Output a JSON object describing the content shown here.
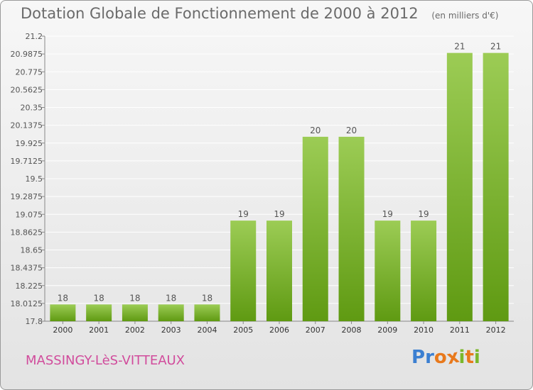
{
  "chart_data": {
    "type": "bar",
    "title": "Dotation Globale de Fonctionnement de 2000 à 2012",
    "unit_label": "(en milliers d'€)",
    "categories": [
      "2000",
      "2001",
      "2002",
      "2003",
      "2004",
      "2005",
      "2006",
      "2007",
      "2008",
      "2009",
      "2010",
      "2011",
      "2012"
    ],
    "values": [
      18,
      18,
      18,
      18,
      18,
      19,
      19,
      20,
      20,
      19,
      19,
      21,
      21
    ],
    "data_labels": [
      "18",
      "18",
      "18",
      "18",
      "18",
      "19",
      "19",
      "20",
      "20",
      "19",
      "19",
      "21",
      "21"
    ],
    "ylim": [
      17.8,
      21.2
    ],
    "yticks": [
      "17.8",
      "18.0125",
      "18.225",
      "18.4375",
      "18.65",
      "18.8625",
      "19.075",
      "19.2875",
      "19.5",
      "19.7125",
      "19.925",
      "20.1375",
      "20.35",
      "20.5625",
      "20.775",
      "20.9875",
      "21.2"
    ],
    "grid": true,
    "colors": {
      "bar_top": "#9ccc55",
      "bar_bottom": "#5f9a12",
      "grid": "#ffffff",
      "axis": "#888888"
    }
  },
  "footer": {
    "commune": "MASSINGY-LèS-VITTEAUX",
    "logo": [
      "P",
      "r",
      "o",
      "x",
      "i",
      "t",
      "i"
    ],
    "logo_colors": [
      "#3b7fd1",
      "#3b7fd1",
      "#e8791c",
      "#e8791c",
      "#7ab82b",
      "#e8791c",
      "#7ab82b"
    ]
  }
}
